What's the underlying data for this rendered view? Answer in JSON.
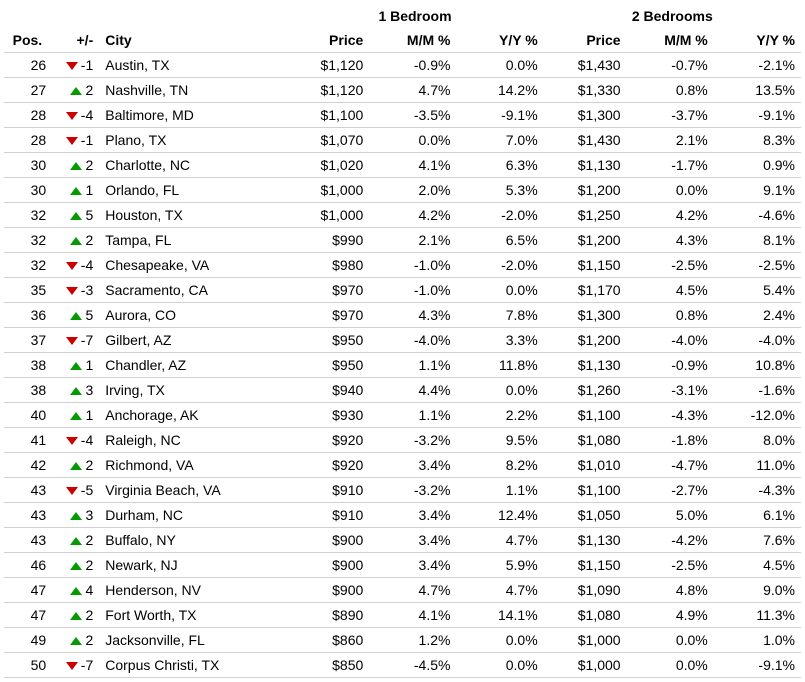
{
  "columns": {
    "pos": "Pos.",
    "delta": "+/-",
    "city": "City",
    "group1": "1 Bedroom",
    "group2": "2 Bedrooms",
    "price": "Price",
    "mm": "M/M %",
    "yy": "Y/Y %"
  },
  "colors": {
    "up": "#059b00",
    "down": "#cc0000",
    "border": "#d0d0d0",
    "text": "#000000",
    "bg": "#ffffff"
  },
  "rows": [
    {
      "pos": "26",
      "dir": "down",
      "delta": "-1",
      "city": "Austin, TX",
      "p1": "$1,120",
      "m1": "-0.9%",
      "y1": "0.0%",
      "p2": "$1,430",
      "m2": "-0.7%",
      "y2": "-2.1%"
    },
    {
      "pos": "27",
      "dir": "up",
      "delta": "2",
      "city": "Nashville, TN",
      "p1": "$1,120",
      "m1": "4.7%",
      "y1": "14.2%",
      "p2": "$1,330",
      "m2": "0.8%",
      "y2": "13.5%"
    },
    {
      "pos": "28",
      "dir": "down",
      "delta": "-4",
      "city": "Baltimore, MD",
      "p1": "$1,100",
      "m1": "-3.5%",
      "y1": "-9.1%",
      "p2": "$1,300",
      "m2": "-3.7%",
      "y2": "-9.1%"
    },
    {
      "pos": "28",
      "dir": "down",
      "delta": "-1",
      "city": "Plano, TX",
      "p1": "$1,070",
      "m1": "0.0%",
      "y1": "7.0%",
      "p2": "$1,430",
      "m2": "2.1%",
      "y2": "8.3%"
    },
    {
      "pos": "30",
      "dir": "up",
      "delta": "2",
      "city": "Charlotte, NC",
      "p1": "$1,020",
      "m1": "4.1%",
      "y1": "6.3%",
      "p2": "$1,130",
      "m2": "-1.7%",
      "y2": "0.9%"
    },
    {
      "pos": "30",
      "dir": "up",
      "delta": "1",
      "city": "Orlando, FL",
      "p1": "$1,000",
      "m1": "2.0%",
      "y1": "5.3%",
      "p2": "$1,200",
      "m2": "0.0%",
      "y2": "9.1%"
    },
    {
      "pos": "32",
      "dir": "up",
      "delta": "5",
      "city": "Houston, TX",
      "p1": "$1,000",
      "m1": "4.2%",
      "y1": "-2.0%",
      "p2": "$1,250",
      "m2": "4.2%",
      "y2": "-4.6%"
    },
    {
      "pos": "32",
      "dir": "up",
      "delta": "2",
      "city": "Tampa, FL",
      "p1": "$990",
      "m1": "2.1%",
      "y1": "6.5%",
      "p2": "$1,200",
      "m2": "4.3%",
      "y2": "8.1%"
    },
    {
      "pos": "32",
      "dir": "down",
      "delta": "-4",
      "city": "Chesapeake, VA",
      "p1": "$980",
      "m1": "-1.0%",
      "y1": "-2.0%",
      "p2": "$1,150",
      "m2": "-2.5%",
      "y2": "-2.5%"
    },
    {
      "pos": "35",
      "dir": "down",
      "delta": "-3",
      "city": "Sacramento, CA",
      "p1": "$970",
      "m1": "-1.0%",
      "y1": "0.0%",
      "p2": "$1,170",
      "m2": "4.5%",
      "y2": "5.4%"
    },
    {
      "pos": "36",
      "dir": "up",
      "delta": "5",
      "city": "Aurora, CO",
      "p1": "$970",
      "m1": "4.3%",
      "y1": "7.8%",
      "p2": "$1,300",
      "m2": "0.8%",
      "y2": "2.4%"
    },
    {
      "pos": "37",
      "dir": "down",
      "delta": "-7",
      "city": "Gilbert, AZ",
      "p1": "$950",
      "m1": "-4.0%",
      "y1": "3.3%",
      "p2": "$1,200",
      "m2": "-4.0%",
      "y2": "-4.0%"
    },
    {
      "pos": "38",
      "dir": "up",
      "delta": "1",
      "city": "Chandler, AZ",
      "p1": "$950",
      "m1": "1.1%",
      "y1": "11.8%",
      "p2": "$1,130",
      "m2": "-0.9%",
      "y2": "10.8%"
    },
    {
      "pos": "38",
      "dir": "up",
      "delta": "3",
      "city": "Irving, TX",
      "p1": "$940",
      "m1": "4.4%",
      "y1": "0.0%",
      "p2": "$1,260",
      "m2": "-3.1%",
      "y2": "-1.6%"
    },
    {
      "pos": "40",
      "dir": "up",
      "delta": "1",
      "city": "Anchorage, AK",
      "p1": "$930",
      "m1": "1.1%",
      "y1": "2.2%",
      "p2": "$1,100",
      "m2": "-4.3%",
      "y2": "-12.0%"
    },
    {
      "pos": "41",
      "dir": "down",
      "delta": "-4",
      "city": "Raleigh, NC",
      "p1": "$920",
      "m1": "-3.2%",
      "y1": "9.5%",
      "p2": "$1,080",
      "m2": "-1.8%",
      "y2": "8.0%"
    },
    {
      "pos": "42",
      "dir": "up",
      "delta": "2",
      "city": "Richmond, VA",
      "p1": "$920",
      "m1": "3.4%",
      "y1": "8.2%",
      "p2": "$1,010",
      "m2": "-4.7%",
      "y2": "11.0%"
    },
    {
      "pos": "43",
      "dir": "down",
      "delta": "-5",
      "city": "Virginia Beach, VA",
      "p1": "$910",
      "m1": "-3.2%",
      "y1": "1.1%",
      "p2": "$1,100",
      "m2": "-2.7%",
      "y2": "-4.3%"
    },
    {
      "pos": "43",
      "dir": "up",
      "delta": "3",
      "city": "Durham, NC",
      "p1": "$910",
      "m1": "3.4%",
      "y1": "12.4%",
      "p2": "$1,050",
      "m2": "5.0%",
      "y2": "6.1%"
    },
    {
      "pos": "43",
      "dir": "up",
      "delta": "2",
      "city": "Buffalo, NY",
      "p1": "$900",
      "m1": "3.4%",
      "y1": "4.7%",
      "p2": "$1,130",
      "m2": "-4.2%",
      "y2": "7.6%"
    },
    {
      "pos": "46",
      "dir": "up",
      "delta": "2",
      "city": "Newark, NJ",
      "p1": "$900",
      "m1": "3.4%",
      "y1": "5.9%",
      "p2": "$1,150",
      "m2": "-2.5%",
      "y2": "4.5%"
    },
    {
      "pos": "47",
      "dir": "up",
      "delta": "4",
      "city": "Henderson, NV",
      "p1": "$900",
      "m1": "4.7%",
      "y1": "4.7%",
      "p2": "$1,090",
      "m2": "4.8%",
      "y2": "9.0%"
    },
    {
      "pos": "47",
      "dir": "up",
      "delta": "2",
      "city": "Fort Worth, TX",
      "p1": "$890",
      "m1": "4.1%",
      "y1": "14.1%",
      "p2": "$1,080",
      "m2": "4.9%",
      "y2": "11.3%"
    },
    {
      "pos": "49",
      "dir": "up",
      "delta": "2",
      "city": "Jacksonville, FL",
      "p1": "$860",
      "m1": "1.2%",
      "y1": "0.0%",
      "p2": "$1,000",
      "m2": "0.0%",
      "y2": "1.0%"
    },
    {
      "pos": "50",
      "dir": "down",
      "delta": "-7",
      "city": "Corpus Christi, TX",
      "p1": "$850",
      "m1": "-4.5%",
      "y1": "0.0%",
      "p2": "$1,000",
      "m2": "0.0%",
      "y2": "-9.1%"
    }
  ]
}
